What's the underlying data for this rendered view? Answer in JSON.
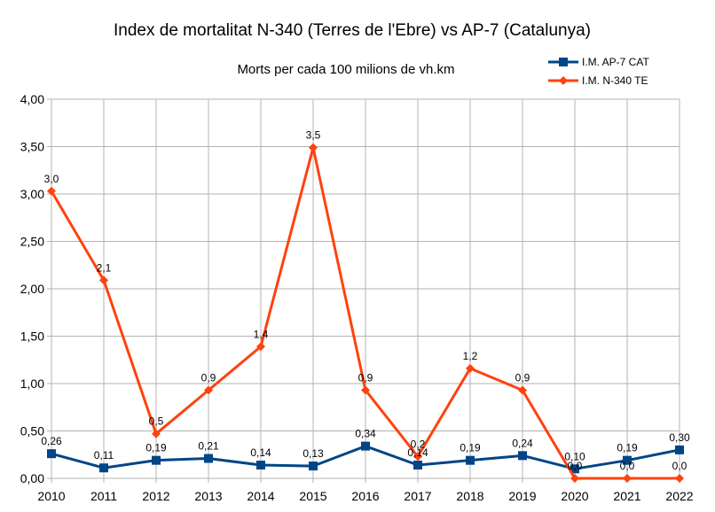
{
  "chart_data": {
    "type": "line",
    "title": "Index de mortalitat N-340 (Terres de l'Ebre) vs AP-7 (Catalunya)",
    "subtitle": "Morts per cada 100 milions de vh.km",
    "categories": [
      "2010",
      "2011",
      "2012",
      "2013",
      "2014",
      "2015",
      "2016",
      "2017",
      "2018",
      "2019",
      "2020",
      "2021",
      "2022"
    ],
    "ylim": [
      0,
      4
    ],
    "yticks": [
      0,
      0.5,
      1,
      1.5,
      2,
      2.5,
      3,
      3.5,
      4
    ],
    "ytick_labels": [
      "0,00",
      "0,50",
      "1,00",
      "1,50",
      "2,00",
      "2,50",
      "3,00",
      "3,50",
      "4,00"
    ],
    "grid": true,
    "legend_position": "top-right",
    "series": [
      {
        "name": "I.M. AP-7 CAT",
        "color": "#004586",
        "marker": "square",
        "values": [
          0.26,
          0.11,
          0.19,
          0.21,
          0.14,
          0.13,
          0.34,
          0.14,
          0.19,
          0.24,
          0.1,
          0.19,
          0.3
        ],
        "labels": [
          "0,26",
          "0,11",
          "0,19",
          "0,21",
          "0,14",
          "0,13",
          "0,34",
          "0,14",
          "0,19",
          "0,24",
          "0,10",
          "0,19",
          "0,30"
        ]
      },
      {
        "name": "I.M. N-340 TE",
        "color": "#ff420e",
        "marker": "diamond",
        "values": [
          3.03,
          2.09,
          0.47,
          0.93,
          1.39,
          3.49,
          0.93,
          0.23,
          1.16,
          0.93,
          0.0,
          0.0,
          0.0
        ],
        "labels": [
          "3,0",
          "2,1",
          "0,5",
          "0,9",
          "1,4",
          "3,5",
          "0,9",
          "0,2",
          "1,2",
          "0,9",
          "0,0",
          "0,0",
          "0,0"
        ]
      }
    ]
  }
}
